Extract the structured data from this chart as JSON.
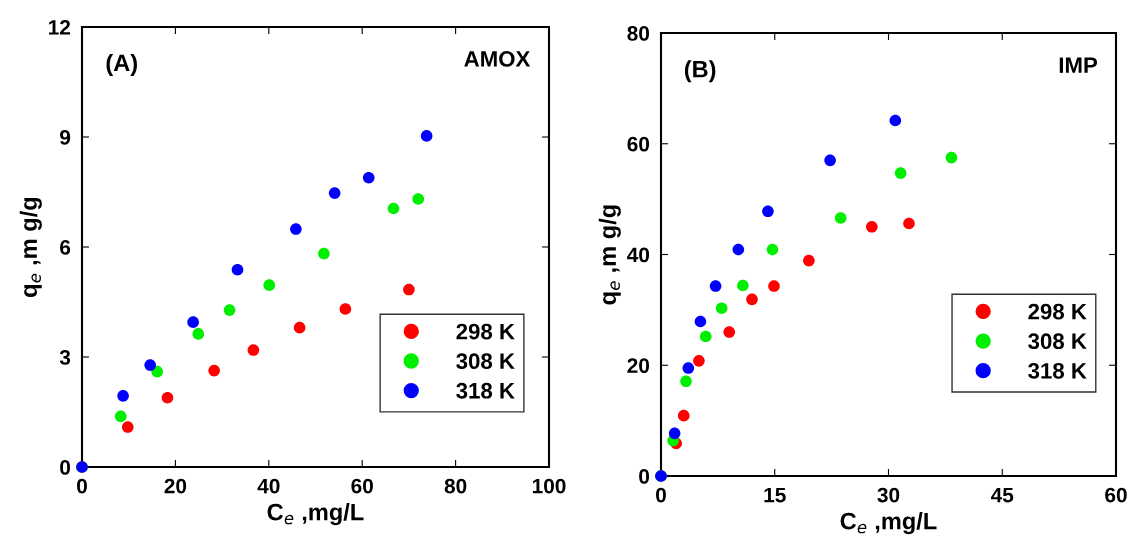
{
  "chart_data": [
    {
      "type": "scatter",
      "xlabel": "C$_{e}$ ,mg/L",
      "ylabel": "q$_{e}$ ,m g/g",
      "annotations": [
        "(A)",
        "AMOX"
      ],
      "xlim": [
        0,
        100
      ],
      "xticks": [
        0,
        20,
        40,
        60,
        80,
        100
      ],
      "ylim": [
        0,
        12
      ],
      "yticks": [
        0,
        3,
        6,
        9,
        12
      ],
      "marker": "circle",
      "legend": "bottom right",
      "grid": false,
      "series": [
        {
          "name": "298 K",
          "color": "#ff0000",
          "x": [
            0,
            9.8,
            18.3,
            28.3,
            36.7,
            46.6,
            56.4,
            70.0
          ],
          "values": [
            0,
            1.09,
            1.89,
            2.63,
            3.19,
            3.8,
            4.31,
            4.84
          ]
        },
        {
          "name": "308 K",
          "color": "#00ee00",
          "x": [
            0,
            8.3,
            16.1,
            24.9,
            31.6,
            40.1,
            51.8,
            66.7,
            72.0
          ],
          "values": [
            0,
            1.38,
            2.6,
            3.63,
            4.28,
            4.96,
            5.82,
            7.05,
            7.31
          ]
        },
        {
          "name": "318 K",
          "color": "#0000ff",
          "x": [
            0,
            8.8,
            14.6,
            23.8,
            33.3,
            45.8,
            54.1,
            61.4,
            73.8
          ],
          "values": [
            0,
            1.94,
            2.78,
            3.95,
            5.38,
            6.49,
            7.47,
            7.89,
            9.03
          ]
        }
      ]
    },
    {
      "type": "scatter",
      "xlabel": "C$_{e}$ ,mg/L",
      "ylabel": "q$_{e}$ ,m g/g",
      "annotations": [
        "(B)",
        "IMP"
      ],
      "xlim": [
        0,
        60
      ],
      "xticks": [
        0,
        15,
        30,
        45,
        60
      ],
      "ylim": [
        0,
        80
      ],
      "yticks": [
        0,
        20,
        40,
        60,
        80
      ],
      "marker": "circle",
      "legend": "right",
      "grid": false,
      "series": [
        {
          "name": "298 K",
          "color": "#ff0000",
          "x": [
            0,
            2.0,
            3.0,
            5.0,
            9.0,
            12.0,
            14.9,
            19.5,
            27.8,
            32.7
          ],
          "values": [
            0,
            5.9,
            10.9,
            20.8,
            26.0,
            31.9,
            34.3,
            38.9,
            45.0,
            45.6
          ]
        },
        {
          "name": "308 K",
          "color": "#00ee00",
          "x": [
            0,
            1.6,
            3.3,
            5.9,
            8.0,
            10.8,
            14.7,
            23.7,
            31.6,
            38.3
          ],
          "values": [
            0,
            6.4,
            17.1,
            25.2,
            30.3,
            34.4,
            40.9,
            46.6,
            54.7,
            57.5
          ]
        },
        {
          "name": "318 K",
          "color": "#0000ff",
          "x": [
            0,
            1.8,
            3.6,
            5.2,
            7.2,
            10.2,
            14.1,
            22.3,
            30.9
          ],
          "values": [
            0,
            7.7,
            19.5,
            27.9,
            34.3,
            40.9,
            47.8,
            57.0,
            64.2
          ]
        }
      ]
    }
  ]
}
